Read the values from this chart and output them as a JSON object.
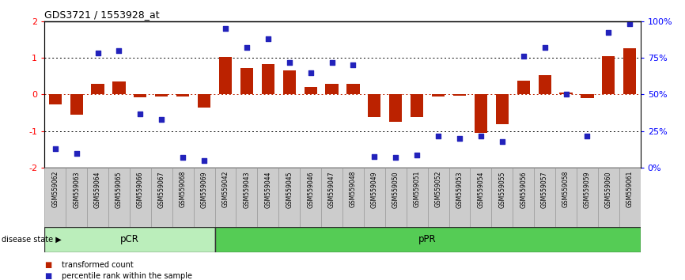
{
  "title": "GDS3721 / 1553928_at",
  "samples": [
    "GSM559062",
    "GSM559063",
    "GSM559064",
    "GSM559065",
    "GSM559066",
    "GSM559067",
    "GSM559068",
    "GSM559069",
    "GSM559042",
    "GSM559043",
    "GSM559044",
    "GSM559045",
    "GSM559046",
    "GSM559047",
    "GSM559048",
    "GSM559049",
    "GSM559050",
    "GSM559051",
    "GSM559052",
    "GSM559053",
    "GSM559054",
    "GSM559055",
    "GSM559056",
    "GSM559057",
    "GSM559058",
    "GSM559059",
    "GSM559060",
    "GSM559061"
  ],
  "bar_values": [
    -0.28,
    -0.55,
    0.28,
    0.35,
    -0.08,
    -0.06,
    -0.05,
    -0.35,
    1.02,
    0.72,
    0.82,
    0.65,
    0.2,
    0.28,
    0.3,
    -0.62,
    -0.75,
    -0.62,
    -0.05,
    -0.04,
    -1.05,
    -0.8,
    0.38,
    0.52,
    0.06,
    -0.1,
    1.05,
    1.25
  ],
  "percentile_values": [
    13,
    10,
    78,
    80,
    37,
    33,
    7,
    5,
    95,
    82,
    88,
    72,
    65,
    72,
    70,
    8,
    7,
    9,
    22,
    20,
    22,
    18,
    76,
    82,
    50,
    22,
    92,
    98
  ],
  "pCR_count": 8,
  "pPR_count": 20,
  "ylim": [
    -2.0,
    2.0
  ],
  "yticks_left": [
    -2,
    -1,
    0,
    1,
    2
  ],
  "right_ytick_pcts": [
    0,
    25,
    50,
    75,
    100
  ],
  "right_yticklabels": [
    "0%",
    "25%",
    "50%",
    "75%",
    "100%"
  ],
  "hline_vals": [
    -1,
    0,
    1
  ],
  "bar_color": "#bb2200",
  "dot_color": "#2222bb",
  "pCR_facecolor": "#bbeebb",
  "pPR_facecolor": "#55cc55",
  "pCR_label": "pCR",
  "pPR_label": "pPR",
  "xtick_bg_color": "#cccccc",
  "legend_bar_label": "transformed count",
  "legend_dot_label": "percentile rank within the sample",
  "disease_state_label": "disease state"
}
